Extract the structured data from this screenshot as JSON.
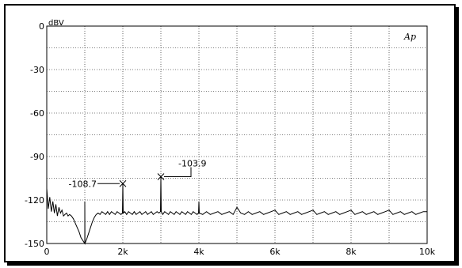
{
  "chart_data": {
    "type": "line",
    "ylabel": "dBV",
    "logo": "Ap",
    "xlim": [
      0,
      10000
    ],
    "ylim": [
      -150,
      0
    ],
    "x_ticks": [
      {
        "value": 0,
        "label": "0"
      },
      {
        "value": 2000,
        "label": "2k"
      },
      {
        "value": 4000,
        "label": "4k"
      },
      {
        "value": 6000,
        "label": "6k"
      },
      {
        "value": 8000,
        "label": "8k"
      },
      {
        "value": 10000,
        "label": "10k"
      }
    ],
    "y_ticks": [
      {
        "value": 0,
        "label": "0"
      },
      {
        "value": -30,
        "label": "-30"
      },
      {
        "value": -60,
        "label": "-60"
      },
      {
        "value": -90,
        "label": "-90"
      },
      {
        "value": -120,
        "label": "-120"
      },
      {
        "value": -150,
        "label": "-150"
      }
    ],
    "grid": {
      "x_divisions": 10,
      "y_divisions": 10,
      "style": "dotted"
    },
    "series": [
      {
        "color": "#000000",
        "points": [
          [
            0,
            -112
          ],
          [
            40,
            -126
          ],
          [
            80,
            -118
          ],
          [
            120,
            -128
          ],
          [
            160,
            -121
          ],
          [
            200,
            -129
          ],
          [
            240,
            -123
          ],
          [
            280,
            -131
          ],
          [
            320,
            -125
          ],
          [
            360,
            -129
          ],
          [
            400,
            -127
          ],
          [
            440,
            -131
          ],
          [
            480,
            -130
          ],
          [
            520,
            -129
          ],
          [
            560,
            -131
          ],
          [
            600,
            -130
          ],
          [
            650,
            -131
          ],
          [
            700,
            -133
          ],
          [
            750,
            -136
          ],
          [
            800,
            -139
          ],
          [
            850,
            -142
          ],
          [
            900,
            -146
          ],
          [
            950,
            -148
          ],
          [
            1000,
            -150
          ],
          [
            1000,
            -121
          ],
          [
            1005,
            -150
          ],
          [
            1050,
            -147
          ],
          [
            1100,
            -143
          ],
          [
            1150,
            -139
          ],
          [
            1200,
            -135
          ],
          [
            1250,
            -132
          ],
          [
            1300,
            -130
          ],
          [
            1350,
            -129
          ],
          [
            1400,
            -130
          ],
          [
            1450,
            -128
          ],
          [
            1500,
            -129
          ],
          [
            1550,
            -130
          ],
          [
            1600,
            -128
          ],
          [
            1650,
            -130
          ],
          [
            1700,
            -128
          ],
          [
            1750,
            -129
          ],
          [
            1800,
            -130
          ],
          [
            1850,
            -128
          ],
          [
            1900,
            -129
          ],
          [
            1950,
            -130
          ],
          [
            1990,
            -129
          ],
          [
            2000,
            -108.7
          ],
          [
            2010,
            -129
          ],
          [
            2050,
            -128
          ],
          [
            2100,
            -130
          ],
          [
            2150,
            -128
          ],
          [
            2200,
            -129
          ],
          [
            2250,
            -130
          ],
          [
            2300,
            -128
          ],
          [
            2350,
            -130
          ],
          [
            2400,
            -129
          ],
          [
            2450,
            -128
          ],
          [
            2500,
            -130
          ],
          [
            2550,
            -129
          ],
          [
            2600,
            -128
          ],
          [
            2650,
            -130
          ],
          [
            2700,
            -129
          ],
          [
            2750,
            -128
          ],
          [
            2800,
            -130
          ],
          [
            2850,
            -129
          ],
          [
            2900,
            -128
          ],
          [
            2950,
            -129
          ],
          [
            2990,
            -128
          ],
          [
            3000,
            -103.9
          ],
          [
            3010,
            -128
          ],
          [
            3050,
            -130
          ],
          [
            3100,
            -128
          ],
          [
            3150,
            -129
          ],
          [
            3200,
            -130
          ],
          [
            3250,
            -128
          ],
          [
            3300,
            -129
          ],
          [
            3350,
            -130
          ],
          [
            3400,
            -128
          ],
          [
            3450,
            -129
          ],
          [
            3500,
            -130
          ],
          [
            3550,
            -128
          ],
          [
            3600,
            -129
          ],
          [
            3650,
            -130
          ],
          [
            3700,
            -128
          ],
          [
            3750,
            -129
          ],
          [
            3800,
            -130
          ],
          [
            3850,
            -128
          ],
          [
            3900,
            -129
          ],
          [
            3950,
            -130
          ],
          [
            3990,
            -129
          ],
          [
            4000,
            -121
          ],
          [
            4010,
            -129
          ],
          [
            4100,
            -130
          ],
          [
            4200,
            -128
          ],
          [
            4300,
            -130
          ],
          [
            4400,
            -129
          ],
          [
            4500,
            -128
          ],
          [
            4600,
            -130
          ],
          [
            4700,
            -129
          ],
          [
            4800,
            -128
          ],
          [
            4900,
            -130
          ],
          [
            5000,
            -125
          ],
          [
            5100,
            -129
          ],
          [
            5200,
            -130
          ],
          [
            5300,
            -128
          ],
          [
            5400,
            -130
          ],
          [
            5500,
            -129
          ],
          [
            5600,
            -128
          ],
          [
            5700,
            -130
          ],
          [
            5800,
            -129
          ],
          [
            5900,
            -128
          ],
          [
            6000,
            -127
          ],
          [
            6100,
            -130
          ],
          [
            6200,
            -129
          ],
          [
            6300,
            -128
          ],
          [
            6400,
            -130
          ],
          [
            6500,
            -129
          ],
          [
            6600,
            -128
          ],
          [
            6700,
            -130
          ],
          [
            6800,
            -129
          ],
          [
            6900,
            -128
          ],
          [
            7000,
            -127
          ],
          [
            7100,
            -130
          ],
          [
            7200,
            -129
          ],
          [
            7300,
            -128
          ],
          [
            7400,
            -130
          ],
          [
            7500,
            -129
          ],
          [
            7600,
            -128
          ],
          [
            7700,
            -130
          ],
          [
            7800,
            -129
          ],
          [
            7900,
            -128
          ],
          [
            8000,
            -127
          ],
          [
            8100,
            -130
          ],
          [
            8200,
            -129
          ],
          [
            8300,
            -128
          ],
          [
            8400,
            -130
          ],
          [
            8500,
            -129
          ],
          [
            8600,
            -128
          ],
          [
            8700,
            -130
          ],
          [
            8800,
            -129
          ],
          [
            8900,
            -128
          ],
          [
            9000,
            -127
          ],
          [
            9100,
            -130
          ],
          [
            9200,
            -129
          ],
          [
            9300,
            -128
          ],
          [
            9400,
            -130
          ],
          [
            9500,
            -129
          ],
          [
            9600,
            -128
          ],
          [
            9700,
            -130
          ],
          [
            9800,
            -129
          ],
          [
            9900,
            -128
          ],
          [
            10000,
            -128
          ]
        ]
      }
    ],
    "annotations": [
      {
        "text": "-108.7",
        "x": 2000,
        "y": -108.7,
        "label_side": "left"
      },
      {
        "text": "-103.9",
        "x": 3000,
        "y": -103.9,
        "label_side": "right"
      }
    ]
  }
}
